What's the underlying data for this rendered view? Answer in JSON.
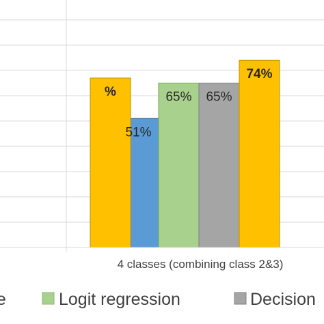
{
  "chart_data": {
    "type": "bar",
    "ylim": [
      0,
      100
    ],
    "grid": true,
    "categories": [
      "",
      "4 classes (combining class 2&3)"
    ],
    "series": [
      {
        "name": "",
        "color": "#5b9bd5",
        "values": [
          null,
          51
        ]
      },
      {
        "name": "Logit regression",
        "color": "#a9d18e",
        "values": [
          null,
          65
        ]
      },
      {
        "name": "Decision",
        "color": "#a5a5a5",
        "values": [
          null,
          65
        ]
      },
      {
        "name": "",
        "color": "#ffc000",
        "values": [
          67,
          74
        ]
      }
    ],
    "data_labels": [
      [
        "",
        "51%"
      ],
      [
        "",
        "65%"
      ],
      [
        "",
        "65%"
      ],
      [
        "%",
        "74%"
      ]
    ],
    "legend": {
      "position": "bottom",
      "items": [
        {
          "label": "ne",
          "color": "#ffc000"
        },
        {
          "label": "Logit regression",
          "color": "#a9d18e"
        },
        {
          "label": "Decision",
          "color": "#a5a5a5"
        }
      ]
    }
  }
}
